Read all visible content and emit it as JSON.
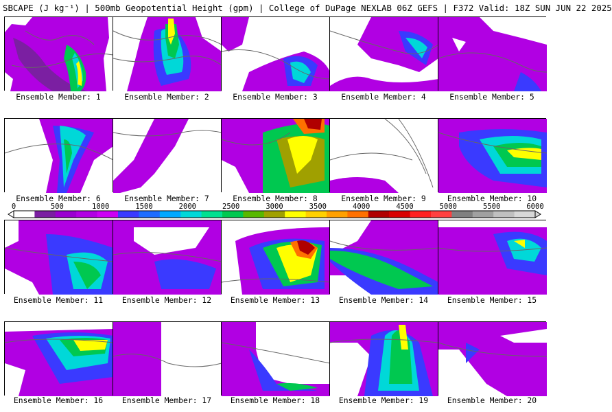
{
  "header": {
    "title": "SBCAPE (J kg⁻¹) | 500mb Geopotential Height (gpm) | College of DuPage NEXLAB 06Z GEFS | F372 Valid: 18Z SUN JUN 22 2025"
  },
  "colorbar": {
    "tick_labels": [
      "0",
      "500",
      "1000",
      "1500",
      "2000",
      "2500",
      "3000",
      "3500",
      "4000",
      "4500",
      "5000",
      "5500",
      "6000"
    ],
    "colors": [
      "#ffffff",
      "#7b1fa2",
      "#9a00d0",
      "#b100e3",
      "#cc00f5",
      "#3a3aff",
      "#1e6cff",
      "#00a8ff",
      "#00d8d8",
      "#00e090",
      "#00c850",
      "#58b800",
      "#a0a000",
      "#ffff00",
      "#ffd000",
      "#ffa000",
      "#ff7000",
      "#b00000",
      "#d80000",
      "#ff2020",
      "#ff4040",
      "#808080",
      "#a0a0a0",
      "#c0c0c0",
      "#d8d8d8"
    ]
  },
  "members": [
    {
      "label": "Ensemble Member: 1"
    },
    {
      "label": "Ensemble Member: 2"
    },
    {
      "label": "Ensemble Member: 3"
    },
    {
      "label": "Ensemble Member: 4"
    },
    {
      "label": "Ensemble Member: 5"
    },
    {
      "label": "Ensemble Member: 6"
    },
    {
      "label": "Ensemble Member: 7"
    },
    {
      "label": "Ensemble Member: 8"
    },
    {
      "label": "Ensemble Member: 9"
    },
    {
      "label": "Ensemble Member: 10"
    },
    {
      "label": "Ensemble Member: 11"
    },
    {
      "label": "Ensemble Member: 12"
    },
    {
      "label": "Ensemble Member: 13"
    },
    {
      "label": "Ensemble Member: 14"
    },
    {
      "label": "Ensemble Member: 15"
    },
    {
      "label": "Ensemble Member: 16"
    },
    {
      "label": "Ensemble Member: 17"
    },
    {
      "label": "Ensemble Member: 18"
    },
    {
      "label": "Ensemble Member: 19"
    },
    {
      "label": "Ensemble Member: 20"
    }
  ]
}
